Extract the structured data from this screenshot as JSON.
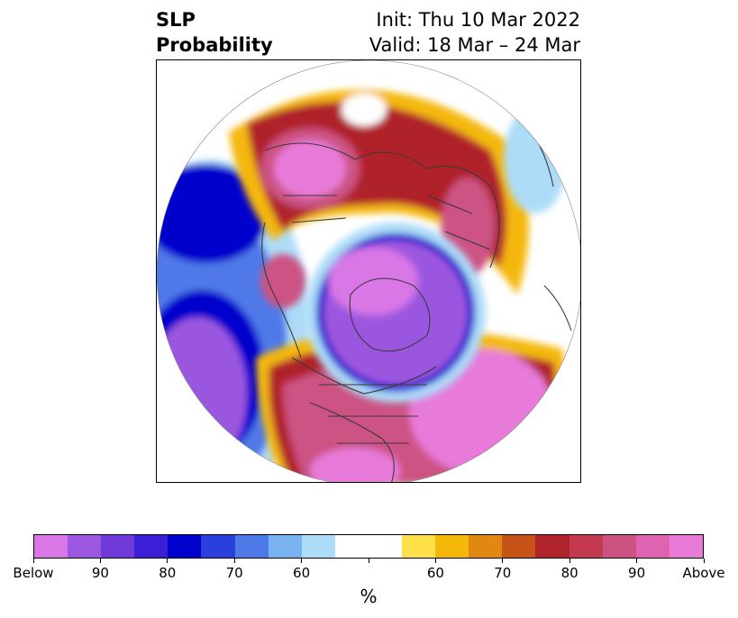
{
  "title": {
    "left_line1": "SLP",
    "left_line2": "Probability",
    "init": "Init: Thu 10 Mar 2022",
    "valid": "Valid: 18 Mar – 24 Mar"
  },
  "colorbar": {
    "unit": "%",
    "colors": [
      "#d977e6",
      "#9b57e0",
      "#6f3ad9",
      "#3a1fd6",
      "#0000cc",
      "#2a3fdc",
      "#4f79e8",
      "#79b2f0",
      "#addcf8",
      "#ffffff",
      "#ffffff",
      "#ffe04a",
      "#f4b808",
      "#e08812",
      "#c65419",
      "#b0232a",
      "#c3394f",
      "#cc5283",
      "#de64b2",
      "#e87ad9"
    ],
    "tick_labels": [
      "Below",
      "90",
      "80",
      "70",
      "60",
      "",
      "60",
      "70",
      "80",
      "90",
      "Above"
    ]
  },
  "map": {
    "projection": "north-polar-stereographic",
    "colors": {
      "above_max": "#e87ad9",
      "above_high": "#cc5283",
      "above_red": "#b0232a",
      "above_orange": "#e08812",
      "above_yellow": "#f4b808",
      "below_max": "#d977e6",
      "below_violet": "#9b57e0",
      "below_blue": "#0000cc",
      "below_mid": "#4f79e8",
      "below_light": "#addcf8",
      "coastline": "#3a3a3a"
    }
  }
}
